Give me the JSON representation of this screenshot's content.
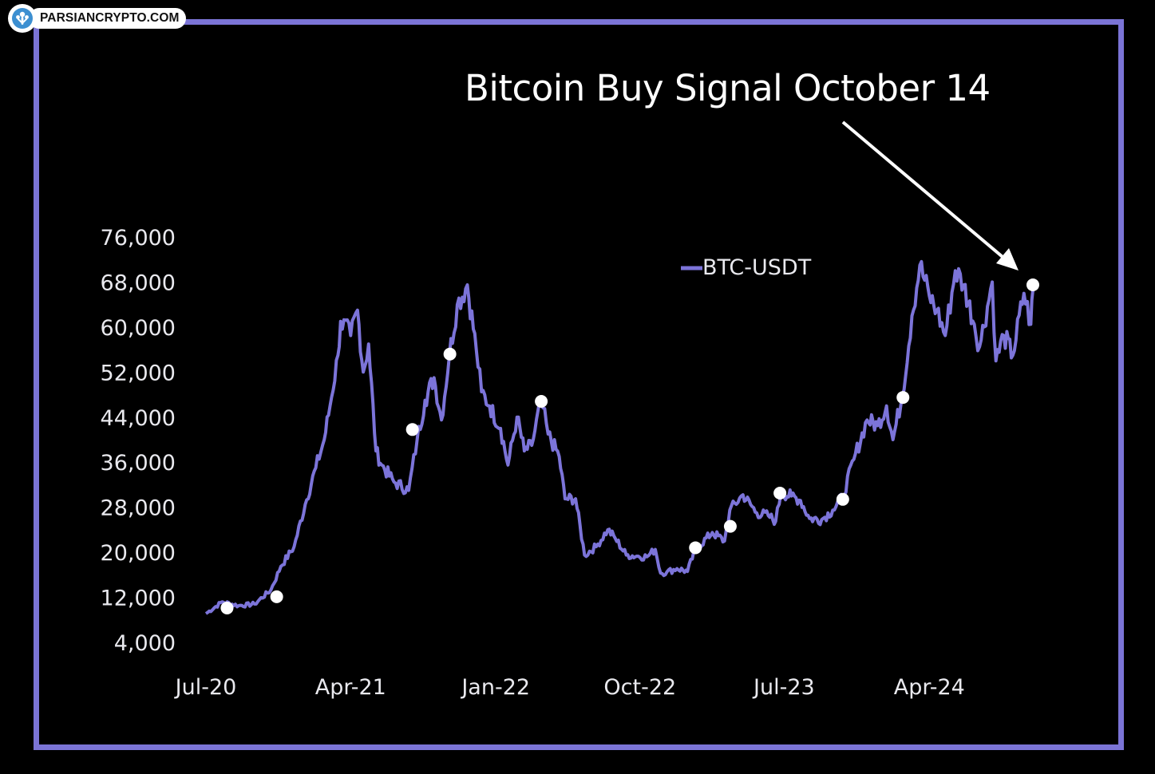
{
  "watermark": {
    "text": "PARSIANCRYPTO.COM",
    "icon": "logo-icon"
  },
  "annotation": {
    "text": "Bitcoin Buy Signal October 14"
  },
  "colors": {
    "frame": "#7b74d6",
    "line": "#7c74d9",
    "marker": "#ffffff",
    "background": "#000000",
    "text": "#e9e9ee"
  },
  "chart_data": {
    "type": "line",
    "title": "",
    "xlabel": "",
    "ylabel": "",
    "y_ticks": [
      "76,000",
      "68,000",
      "60,000",
      "52,000",
      "44,000",
      "36,000",
      "28,000",
      "20,000",
      "12,000",
      "4,000"
    ],
    "y_tick_values": [
      76000,
      68000,
      60000,
      52000,
      44000,
      36000,
      28000,
      20000,
      12000,
      4000
    ],
    "x_ticks": [
      "Jul-20",
      "Apr-21",
      "Jan-22",
      "Oct-22",
      "Jul-23",
      "Apr-24"
    ],
    "x_tick_dates": [
      "2020-07-01",
      "2021-04-01",
      "2022-01-01",
      "2022-10-01",
      "2023-07-01",
      "2024-04-01"
    ],
    "ylim": [
      4000,
      76000
    ],
    "xlim": [
      "2020-07-01",
      "2024-10-14"
    ],
    "legend": {
      "position": "top-right",
      "entries": [
        "BTC-USDT"
      ]
    },
    "series": [
      {
        "name": "BTC-USDT",
        "x": [
          "2020-07-01",
          "2020-08-01",
          "2020-09-01",
          "2020-10-01",
          "2020-11-01",
          "2020-11-20",
          "2020-12-15",
          "2021-01-05",
          "2021-01-25",
          "2021-02-10",
          "2021-02-21",
          "2021-03-08",
          "2021-03-13",
          "2021-04-01",
          "2021-04-14",
          "2021-04-25",
          "2021-05-05",
          "2021-05-19",
          "2021-05-30",
          "2021-06-22",
          "2021-07-20",
          "2021-08-05",
          "2021-08-20",
          "2021-09-06",
          "2021-09-20",
          "2021-10-05",
          "2021-10-20",
          "2021-11-08",
          "2021-11-25",
          "2021-12-05",
          "2021-12-20",
          "2022-01-10",
          "2022-01-24",
          "2022-02-10",
          "2022-02-24",
          "2022-03-10",
          "2022-03-28",
          "2022-04-10",
          "2022-05-01",
          "2022-05-12",
          "2022-06-01",
          "2022-06-18",
          "2022-07-10",
          "2022-08-01",
          "2022-08-15",
          "2022-09-05",
          "2022-09-25",
          "2022-10-14",
          "2022-10-30",
          "2022-11-09",
          "2022-11-21",
          "2022-12-10",
          "2022-12-30",
          "2023-01-14",
          "2023-02-15",
          "2023-03-10",
          "2023-03-20",
          "2023-04-14",
          "2023-05-10",
          "2023-06-01",
          "2023-06-15",
          "2023-06-25",
          "2023-07-15",
          "2023-08-01",
          "2023-08-18",
          "2023-09-10",
          "2023-10-01",
          "2023-10-20",
          "2023-11-10",
          "2023-12-05",
          "2023-12-25",
          "2024-01-11",
          "2024-01-23",
          "2024-02-10",
          "2024-02-28",
          "2024-03-14",
          "2024-04-01",
          "2024-04-15",
          "2024-05-01",
          "2024-05-20",
          "2024-06-05",
          "2024-06-25",
          "2024-07-05",
          "2024-07-29",
          "2024-08-05",
          "2024-08-20",
          "2024-09-06",
          "2024-09-27",
          "2024-10-10",
          "2024-10-14"
        ],
        "values": [
          9100,
          11200,
          10500,
          10800,
          13300,
          17500,
          21000,
          28500,
          35000,
          40000,
          46000,
          55000,
          61000,
          58500,
          63000,
          52000,
          57000,
          38000,
          35500,
          32500,
          31000,
          40000,
          47000,
          51000,
          43500,
          55000,
          64000,
          67500,
          56000,
          48500,
          46000,
          42000,
          35500,
          44000,
          38000,
          39000,
          47000,
          41000,
          37000,
          29500,
          29500,
          19500,
          21000,
          24000,
          22500,
          19500,
          19300,
          19200,
          20500,
          16300,
          16500,
          17100,
          16600,
          20500,
          23500,
          22000,
          27500,
          30200,
          27000,
          26500,
          25500,
          30500,
          30000,
          29200,
          26000,
          25800,
          27500,
          29900,
          36500,
          43500,
          42500,
          46000,
          40000,
          48000,
          62000,
          71000,
          65500,
          63000,
          58500,
          70000,
          67500,
          60500,
          56500,
          68000,
          54000,
          58500,
          55000,
          66000,
          60500,
          66500
        ]
      }
    ],
    "markers": [
      {
        "x": "2020-08-10",
        "y": 10100
      },
      {
        "x": "2020-11-12",
        "y": 12100
      },
      {
        "x": "2021-07-27",
        "y": 41800
      },
      {
        "x": "2021-10-06",
        "y": 55200
      },
      {
        "x": "2022-03-28",
        "y": 46800
      },
      {
        "x": "2023-01-14",
        "y": 20800
      },
      {
        "x": "2023-03-21",
        "y": 24600
      },
      {
        "x": "2023-06-23",
        "y": 30500
      },
      {
        "x": "2023-10-20",
        "y": 29400
      },
      {
        "x": "2024-02-11",
        "y": 47500
      },
      {
        "x": "2024-10-14",
        "y": 67500
      }
    ]
  }
}
